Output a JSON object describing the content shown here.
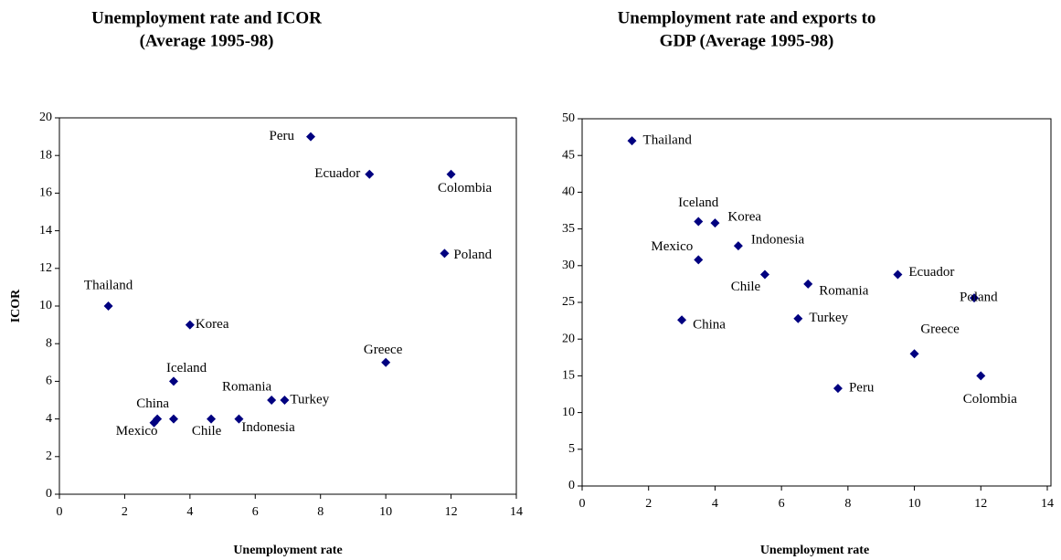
{
  "chart_data": [
    {
      "type": "scatter",
      "title": [
        "Unemployment rate and ICOR",
        "(Average 1995-98)"
      ],
      "xlabel": "Unemployment rate",
      "ylabel": "ICOR",
      "xlim": [
        0,
        14
      ],
      "xticks": [
        0,
        2,
        4,
        6,
        8,
        10,
        12,
        14
      ],
      "ylim": [
        0,
        20
      ],
      "yticks": [
        0,
        2,
        4,
        6,
        8,
        10,
        12,
        14,
        16,
        18,
        20
      ],
      "color": "#000080",
      "labels": [
        "Peru",
        "Ecuador",
        "Colombia",
        "Poland",
        "Thailand",
        "Korea",
        "Greece",
        "Iceland",
        "Romania",
        "Turkey",
        "China",
        "Mexico",
        "Chile",
        "Indonesia",
        null
      ],
      "x": [
        7.7,
        9.5,
        12,
        11.8,
        1.5,
        4,
        10,
        3.5,
        6.5,
        6.9,
        3.0,
        2.9,
        4.65,
        5.5,
        3.5
      ],
      "y": [
        19,
        17,
        17,
        12.8,
        10,
        9,
        7,
        6,
        5,
        5,
        4.0,
        3.8,
        4,
        4,
        4
      ]
    },
    {
      "type": "scatter",
      "title": [
        "Unemployment rate and exports to",
        "GDP (Average 1995-98)"
      ],
      "xlabel": "Unemployment rate",
      "xlim": [
        0,
        14
      ],
      "xticks": [
        0,
        2,
        4,
        6,
        8,
        10,
        12,
        14
      ],
      "ylim": [
        0,
        50
      ],
      "yticks": [
        0,
        5,
        10,
        15,
        20,
        25,
        30,
        35,
        40,
        45,
        50
      ],
      "color": "#000080",
      "labels": [
        "Thailand",
        "Iceland",
        "Korea",
        "Indonesia",
        "Mexico",
        "Chile",
        "Romania",
        "Ecuador",
        "Poland",
        "China",
        "Turkey",
        "Greece",
        "Peru",
        "Colombia"
      ],
      "x": [
        1.5,
        3.5,
        4,
        4.7,
        3.5,
        5.5,
        6.8,
        9.5,
        11.8,
        3,
        6.5,
        10,
        7.7,
        12
      ],
      "y": [
        47,
        36,
        35.8,
        32.7,
        30.8,
        28.8,
        27.5,
        28.8,
        25.6,
        22.6,
        22.8,
        18,
        13.3,
        15
      ]
    }
  ]
}
